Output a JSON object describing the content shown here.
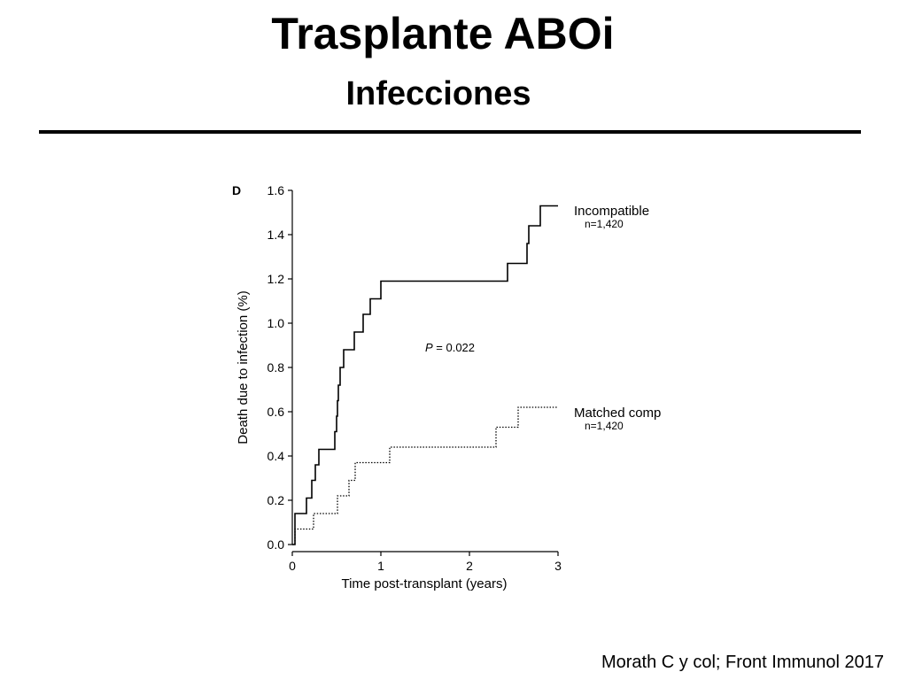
{
  "slide": {
    "title": "Trasplante ABOi",
    "subtitle": "Infecciones",
    "citation": "Morath C y col; Front Immunol 2017"
  },
  "chart_data": {
    "type": "line",
    "panel_label": "D",
    "xlabel": "Time post-transplant (years)",
    "ylabel": "Death due to infection (%)",
    "xlim": [
      0,
      3
    ],
    "ylim": [
      0,
      1.6
    ],
    "x_ticks": [
      0,
      1,
      2,
      3
    ],
    "x_tick_labels": [
      "0",
      "1",
      "2",
      "3"
    ],
    "y_ticks": [
      0,
      0.2,
      0.4,
      0.6,
      0.8,
      1.0,
      1.2,
      1.4,
      1.6
    ],
    "y_tick_labels": [
      "0.0",
      "0.2",
      "0.4",
      "0.6",
      "0.8",
      "1.0",
      "1.2",
      "1.4",
      "1.6"
    ],
    "grid": false,
    "annotation": "P = 0.022",
    "series": [
      {
        "name": "Incompatible",
        "n_label": "n=1,420",
        "style": "solid",
        "step_points": [
          [
            0,
            0
          ],
          [
            0.03,
            0.14
          ],
          [
            0.16,
            0.21
          ],
          [
            0.22,
            0.29
          ],
          [
            0.26,
            0.36
          ],
          [
            0.3,
            0.43
          ],
          [
            0.48,
            0.51
          ],
          [
            0.5,
            0.58
          ],
          [
            0.51,
            0.65
          ],
          [
            0.52,
            0.72
          ],
          [
            0.54,
            0.8
          ],
          [
            0.58,
            0.88
          ],
          [
            0.7,
            0.96
          ],
          [
            0.8,
            1.04
          ],
          [
            0.88,
            1.11
          ],
          [
            1.0,
            1.19
          ],
          [
            2.43,
            1.27
          ],
          [
            2.65,
            1.36
          ],
          [
            2.67,
            1.44
          ],
          [
            2.8,
            1.53
          ],
          [
            3.0,
            1.53
          ]
        ]
      },
      {
        "name": "Matched comp",
        "n_label": "n=1,420",
        "style": "dotted",
        "step_points": [
          [
            0,
            0
          ],
          [
            0.03,
            0.07
          ],
          [
            0.24,
            0.14
          ],
          [
            0.51,
            0.22
          ],
          [
            0.64,
            0.29
          ],
          [
            0.71,
            0.37
          ],
          [
            1.1,
            0.44
          ],
          [
            2.3,
            0.53
          ],
          [
            2.55,
            0.62
          ],
          [
            3.0,
            0.62
          ]
        ]
      }
    ]
  }
}
